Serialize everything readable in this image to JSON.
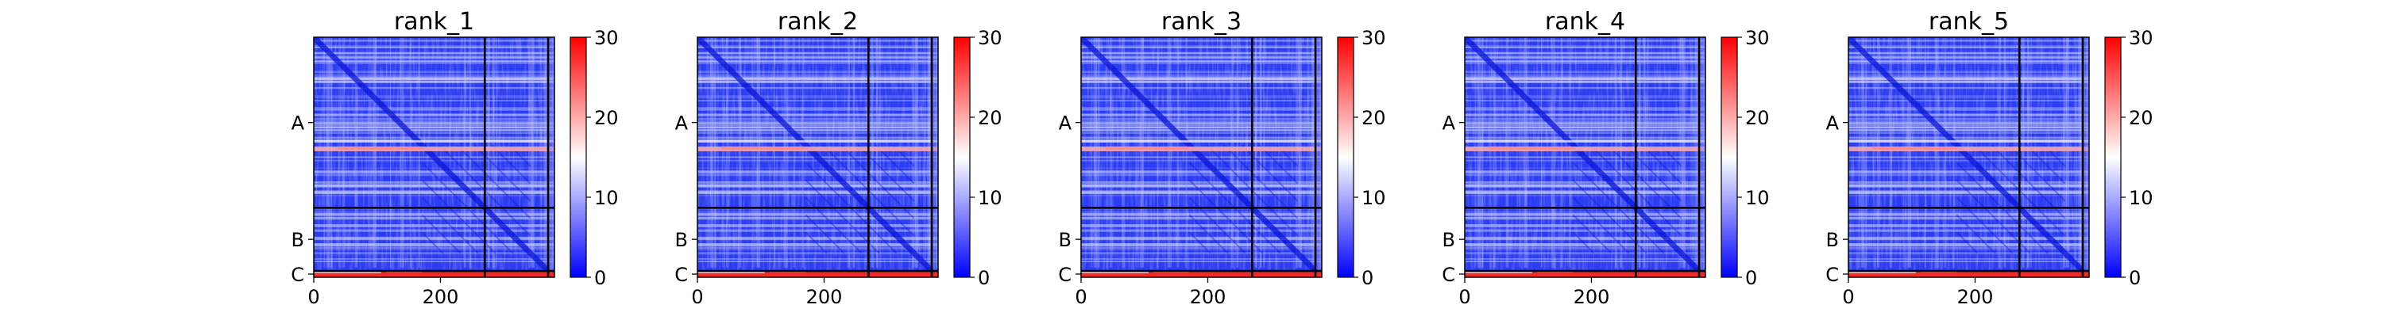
{
  "chart_data": [
    {
      "type": "heatmap",
      "title": "rank_1",
      "x_ticks": [
        0,
        200
      ],
      "y_ticks": [
        "A",
        "B",
        "C"
      ],
      "x_range": [
        0,
        380
      ],
      "chains": [
        {
          "name": "A",
          "length": 270
        },
        {
          "name": "B",
          "length": 100
        },
        {
          "name": "C",
          "length": 10
        }
      ],
      "colorbar": {
        "min": 0,
        "max": 30,
        "ticks": [
          0,
          10,
          20,
          30
        ],
        "colors": [
          "#0000ff",
          "#ffffff",
          "#ff0000"
        ]
      }
    },
    {
      "type": "heatmap",
      "title": "rank_2",
      "x_ticks": [
        0,
        200
      ],
      "y_ticks": [
        "A",
        "B",
        "C"
      ],
      "x_range": [
        0,
        380
      ],
      "chains": [
        {
          "name": "A",
          "length": 270
        },
        {
          "name": "B",
          "length": 100
        },
        {
          "name": "C",
          "length": 10
        }
      ],
      "colorbar": {
        "min": 0,
        "max": 30,
        "ticks": [
          0,
          10,
          20,
          30
        ],
        "colors": [
          "#0000ff",
          "#ffffff",
          "#ff0000"
        ]
      }
    },
    {
      "type": "heatmap",
      "title": "rank_3",
      "x_ticks": [
        0,
        200
      ],
      "y_ticks": [
        "A",
        "B",
        "C"
      ],
      "x_range": [
        0,
        380
      ],
      "chains": [
        {
          "name": "A",
          "length": 270
        },
        {
          "name": "B",
          "length": 100
        },
        {
          "name": "C",
          "length": 10
        }
      ],
      "colorbar": {
        "min": 0,
        "max": 30,
        "ticks": [
          0,
          10,
          20,
          30
        ],
        "colors": [
          "#0000ff",
          "#ffffff",
          "#ff0000"
        ]
      }
    },
    {
      "type": "heatmap",
      "title": "rank_4",
      "x_ticks": [
        0,
        200
      ],
      "y_ticks": [
        "A",
        "B",
        "C"
      ],
      "x_range": [
        0,
        380
      ],
      "chains": [
        {
          "name": "A",
          "length": 270
        },
        {
          "name": "B",
          "length": 100
        },
        {
          "name": "C",
          "length": 10
        }
      ],
      "colorbar": {
        "min": 0,
        "max": 30,
        "ticks": [
          0,
          10,
          20,
          30
        ],
        "colors": [
          "#0000ff",
          "#ffffff",
          "#ff0000"
        ]
      }
    },
    {
      "type": "heatmap",
      "title": "rank_5",
      "x_ticks": [
        0,
        200
      ],
      "y_ticks": [
        "A",
        "B",
        "C"
      ],
      "x_range": [
        0,
        380
      ],
      "chains": [
        {
          "name": "A",
          "length": 270
        },
        {
          "name": "B",
          "length": 100
        },
        {
          "name": "C",
          "length": 10
        }
      ],
      "colorbar": {
        "min": 0,
        "max": 30,
        "ticks": [
          0,
          10,
          20,
          30
        ],
        "colors": [
          "#0000ff",
          "#ffffff",
          "#ff0000"
        ]
      }
    }
  ]
}
